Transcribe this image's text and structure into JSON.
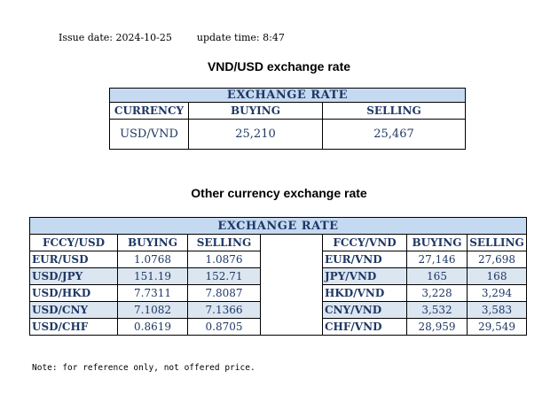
{
  "meta": {
    "issue_date": "Issue date: 2024-10-25",
    "update_time": "update time: 8:47"
  },
  "usd_vnd": {
    "title": "VND/USD exchange rate",
    "band": "EXCHANGE RATE",
    "headers": [
      "CURRENCY",
      "BUYING",
      "SELLING"
    ],
    "row": {
      "pair": "USD/VND",
      "buying": "25,210",
      "selling": "25,467"
    }
  },
  "other": {
    "title": "Other currency exchange rate",
    "band": "EXCHANGE  RATE",
    "left_headers": [
      "FCCY/USD",
      "BUYING",
      "SELLING"
    ],
    "right_headers": [
      "FCCY/VND",
      "BUYING",
      "SELLING"
    ],
    "rows": [
      {
        "lp": "EUR/USD",
        "lb": "1.0768",
        "ls": "1.0876",
        "rp": "EUR/VND",
        "rb": "27,146",
        "rs": "27,698"
      },
      {
        "lp": "USD/JPY",
        "lb": "151.19",
        "ls": "152.71",
        "rp": "JPY/VND",
        "rb": "165",
        "rs": "168"
      },
      {
        "lp": "USD/HKD",
        "lb": "7.7311",
        "ls": "7.8087",
        "rp": "HKD/VND",
        "rb": "3,228",
        "rs": "3,294"
      },
      {
        "lp": "USD/CNY",
        "lb": "7.1082",
        "ls": "7.1366",
        "rp": "CNY/VND",
        "rb": "3,532",
        "rs": "3,583"
      },
      {
        "lp": "USD/CHF",
        "lb": "0.8619",
        "ls": "0.8705",
        "rp": "CHF/VND",
        "rb": "28,959",
        "rs": "29,549"
      }
    ]
  },
  "note": "Note: for reference only, not offered price.",
  "colors": {
    "text": "#1f3864",
    "band": "#c5d9f1",
    "stripe": "#dce6f1"
  }
}
